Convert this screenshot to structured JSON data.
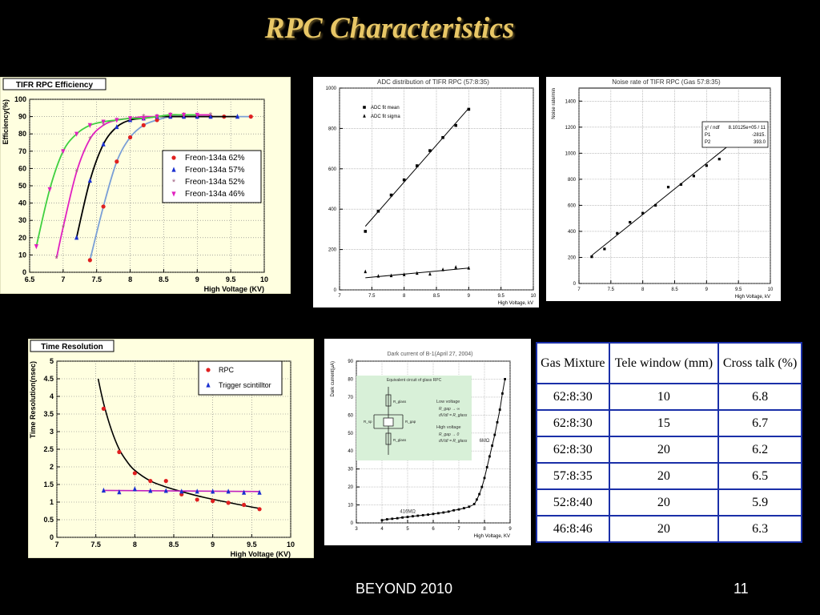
{
  "slide": {
    "title": "RPC Characteristics",
    "footer_left": "BEYOND 2010",
    "page_number": "11"
  },
  "chart_data": [
    {
      "id": "efficiency",
      "type": "scatter",
      "title": "TIFR RPC Efficiency",
      "xlabel": "High Voltage (KV)",
      "ylabel": "Efficiency(%)",
      "xlim": [
        6.5,
        10
      ],
      "ylim": [
        0,
        100
      ],
      "x_ticks": [
        "6.5",
        "7",
        "7.5",
        "8",
        "8.5",
        "9",
        "9.5",
        "10"
      ],
      "y_ticks": [
        "0",
        "10",
        "20",
        "30",
        "40",
        "50",
        "60",
        "70",
        "80",
        "90",
        "100"
      ],
      "legend_position": "center-right",
      "grid": true,
      "series": [
        {
          "name": "Freon-134a  62%",
          "color": "#e02020",
          "marker": "circle",
          "curve_color": "#7a9fd6",
          "points": [
            [
              7.4,
              7
            ],
            [
              7.6,
              38
            ],
            [
              7.8,
              64
            ],
            [
              8.0,
              78
            ],
            [
              8.2,
              85
            ],
            [
              8.4,
              88
            ],
            [
              8.6,
              90
            ],
            [
              8.8,
              90
            ],
            [
              9.0,
              90
            ],
            [
              9.2,
              90
            ],
            [
              9.4,
              90
            ],
            [
              9.8,
              90
            ]
          ]
        },
        {
          "name": "Freon-134a  57%",
          "color": "#1a2fd0",
          "marker": "triangle",
          "curve_color": "#000000",
          "points": [
            [
              7.2,
              20
            ],
            [
              7.4,
              53
            ],
            [
              7.6,
              74
            ],
            [
              7.8,
              84
            ],
            [
              8.0,
              88
            ],
            [
              8.2,
              89
            ],
            [
              8.4,
              90
            ],
            [
              8.6,
              90
            ],
            [
              8.8,
              90
            ],
            [
              9.0,
              90
            ],
            [
              9.2,
              90
            ],
            [
              9.6,
              90
            ]
          ]
        },
        {
          "name": "Freon-134a  52%",
          "color": "#a06080",
          "marker": "star",
          "curve_color": "#e020c0",
          "points": [
            [
              6.9,
              8
            ],
            [
              7.0,
              26
            ],
            [
              7.2,
              58
            ],
            [
              7.4,
              77
            ],
            [
              7.6,
              85
            ],
            [
              7.8,
              88
            ],
            [
              8.0,
              89
            ],
            [
              8.2,
              90
            ],
            [
              8.4,
              90
            ],
            [
              8.6,
              91
            ],
            [
              8.8,
              91
            ],
            [
              9.2,
              91
            ]
          ]
        },
        {
          "name": "Freon-134a  46%",
          "color": "#e020c0",
          "marker": "triangle-down",
          "curve_color": "#40d040",
          "points": [
            [
              6.6,
              15
            ],
            [
              6.8,
              48
            ],
            [
              7.0,
              70
            ],
            [
              7.2,
              80
            ],
            [
              7.4,
              85
            ],
            [
              7.6,
              87
            ],
            [
              7.8,
              88
            ],
            [
              8.0,
              89
            ],
            [
              8.2,
              89
            ],
            [
              8.4,
              90
            ],
            [
              8.6,
              91
            ],
            [
              8.8,
              91
            ],
            [
              9.0,
              91
            ]
          ]
        }
      ]
    },
    {
      "id": "adc",
      "type": "scatter",
      "title": "ADC distribution of TIFR RPC (57:8:35)",
      "xlabel": "High Voltage, kV",
      "ylabel": "",
      "xlim": [
        7,
        10
      ],
      "ylim": [
        0,
        1000
      ],
      "x_ticks": [
        "7",
        "7.5",
        "8",
        "8.5",
        "9",
        "9.5",
        "10"
      ],
      "y_ticks": [
        "0",
        "200",
        "400",
        "600",
        "800",
        "1000"
      ],
      "grid": true,
      "legend_position": "top-left",
      "series": [
        {
          "name": "ADC fit mean",
          "marker": "square",
          "points": [
            [
              7.4,
              290
            ],
            [
              7.6,
              390
            ],
            [
              7.8,
              470
            ],
            [
              8.0,
              545
            ],
            [
              8.2,
              615
            ],
            [
              8.4,
              690
            ],
            [
              8.6,
              755
            ],
            [
              8.8,
              815
            ],
            [
              9.0,
              895
            ]
          ],
          "fit": [
            [
              7.4,
              315
            ],
            [
              9.0,
              900
            ]
          ]
        },
        {
          "name": "ADC fit sigma",
          "marker": "triangle",
          "points": [
            [
              7.4,
              90
            ],
            [
              7.6,
              68
            ],
            [
              7.8,
              70
            ],
            [
              8.0,
              75
            ],
            [
              8.2,
              82
            ],
            [
              8.4,
              78
            ],
            [
              8.6,
              100
            ],
            [
              8.8,
              112
            ],
            [
              9.0,
              108
            ]
          ],
          "fit": [
            [
              7.4,
              60
            ],
            [
              9.0,
              108
            ]
          ]
        }
      ]
    },
    {
      "id": "noise",
      "type": "scatter",
      "title": "Noise rate of TIFR RPC (Gas 57:8:35)",
      "xlabel": "High Voltage, kV",
      "ylabel": "Noise rate/min",
      "xlim": [
        7,
        10
      ],
      "ylim": [
        0,
        1500
      ],
      "x_ticks": [
        "7",
        "7.5",
        "8",
        "8.5",
        "9",
        "9.5",
        "10"
      ],
      "y_ticks": [
        "0",
        "200",
        "400",
        "600",
        "800",
        "1000",
        "1200",
        "1400"
      ],
      "grid": true,
      "stats_box": {
        "row1_label": "χ² / ndf",
        "row1_value": "8.10125e+05 /    11",
        "row2_label": "P1",
        "row2_value": "-2815.",
        "row3_label": "P2",
        "row3_value": "393.0"
      },
      "series": [
        {
          "name": "",
          "marker": "square",
          "points": [
            [
              7.2,
              205
            ],
            [
              7.4,
              265
            ],
            [
              7.6,
              385
            ],
            [
              7.8,
              470
            ],
            [
              8.0,
              540
            ],
            [
              8.2,
              600
            ],
            [
              8.4,
              740
            ],
            [
              8.6,
              760
            ],
            [
              8.8,
              825
            ],
            [
              9.0,
              905
            ],
            [
              9.2,
              955
            ],
            [
              9.4,
              1060
            ]
          ],
          "fit": [
            [
              7.2,
              215
            ],
            [
              9.4,
              1080
            ]
          ]
        }
      ]
    },
    {
      "id": "time_resolution",
      "type": "scatter",
      "title": "Time Resolution",
      "xlabel": "High Voltage (KV)",
      "ylabel": "Time Resolution(nsec)",
      "xlim": [
        7,
        10
      ],
      "ylim": [
        0,
        5
      ],
      "x_ticks": [
        "7",
        "7.5",
        "8",
        "8.5",
        "9",
        "9.5",
        "10"
      ],
      "y_ticks": [
        "0",
        "0.5",
        "1",
        "1.5",
        "2",
        "2.5",
        "3",
        "3.5",
        "4",
        "4.5",
        "5"
      ],
      "grid": true,
      "legend_position": "top-right",
      "series": [
        {
          "name": "RPC",
          "color": "#e02020",
          "marker": "circle",
          "points": [
            [
              7.6,
              3.65
            ],
            [
              7.8,
              2.42
            ],
            [
              8.0,
              1.82
            ],
            [
              8.2,
              1.6
            ],
            [
              8.4,
              1.6
            ],
            [
              8.6,
              1.22
            ],
            [
              8.8,
              1.07
            ],
            [
              9.0,
              1.03
            ],
            [
              9.2,
              0.98
            ],
            [
              9.4,
              0.92
            ],
            [
              9.6,
              0.8
            ]
          ],
          "fit": [
            [
              7.53,
              4.5
            ],
            [
              7.6,
              3.8
            ],
            [
              7.7,
              3.05
            ],
            [
              7.8,
              2.5
            ],
            [
              7.9,
              2.15
            ],
            [
              8.0,
              1.9
            ],
            [
              8.2,
              1.6
            ],
            [
              8.4,
              1.43
            ],
            [
              8.6,
              1.3
            ],
            [
              8.8,
              1.18
            ],
            [
              9.0,
              1.08
            ],
            [
              9.2,
              0.99
            ],
            [
              9.4,
              0.9
            ],
            [
              9.6,
              0.82
            ]
          ]
        },
        {
          "name": "Trigger scintilltor",
          "color": "#1a2fd0",
          "marker": "triangle",
          "points": [
            [
              7.6,
              1.33
            ],
            [
              7.8,
              1.28
            ],
            [
              8.0,
              1.37
            ],
            [
              8.2,
              1.32
            ],
            [
              8.4,
              1.32
            ],
            [
              8.6,
              1.3
            ],
            [
              8.8,
              1.3
            ],
            [
              9.0,
              1.3
            ],
            [
              9.2,
              1.3
            ],
            [
              9.4,
              1.27
            ],
            [
              9.6,
              1.27
            ]
          ],
          "fit": [
            [
              7.6,
              1.33
            ],
            [
              9.6,
              1.3
            ]
          ]
        }
      ]
    },
    {
      "id": "dark_current",
      "type": "scatter",
      "title": "Dark current of B-1(April 27, 2004)",
      "xlabel": "High Voltage, KV",
      "ylabel": "Dark current(μA)",
      "xlim": [
        3,
        9
      ],
      "ylim": [
        0,
        90
      ],
      "x_ticks": [
        "3",
        "4",
        "5",
        "6",
        "7",
        "8",
        "9"
      ],
      "y_ticks": [
        "0",
        "10",
        "20",
        "30",
        "40",
        "50",
        "60",
        "70",
        "80",
        "90"
      ],
      "grid": true,
      "annotations": {
        "low": "416MΩ",
        "high": "6MΩ"
      },
      "inset": {
        "title": "Equivalent circuit of glass RPC",
        "low_voltage": "Low voltage",
        "low_eq1": "R_gap → ∞",
        "low_eq2": "dV/dI = R_glass",
        "high_voltage": "High voltage",
        "high_eq1": "R_gap → 0",
        "high_eq2": "dV/dI = R_glass",
        "r_glass_top": "R_glass",
        "r_spacer": "R_sp",
        "r_gap": "R_gap",
        "r_glass_bottom": "R_glass"
      },
      "series": [
        {
          "name": "",
          "marker": "square",
          "points": [
            [
              4.0,
              1.5
            ],
            [
              4.2,
              2
            ],
            [
              4.4,
              2.3
            ],
            [
              4.6,
              2.6
            ],
            [
              4.8,
              3
            ],
            [
              5.0,
              3.3
            ],
            [
              5.2,
              3.7
            ],
            [
              5.4,
              4
            ],
            [
              5.6,
              4.3
            ],
            [
              5.8,
              4.6
            ],
            [
              6.0,
              5
            ],
            [
              6.2,
              5.4
            ],
            [
              6.4,
              5.8
            ],
            [
              6.6,
              6.3
            ],
            [
              6.8,
              7
            ],
            [
              7.0,
              7.5
            ],
            [
              7.2,
              8.2
            ],
            [
              7.4,
              9
            ],
            [
              7.6,
              10.5
            ],
            [
              7.7,
              13
            ],
            [
              7.8,
              16
            ],
            [
              7.9,
              20
            ],
            [
              8.0,
              25
            ],
            [
              8.1,
              31
            ],
            [
              8.2,
              37
            ],
            [
              8.3,
              43
            ],
            [
              8.4,
              49
            ],
            [
              8.5,
              56
            ],
            [
              8.6,
              63
            ],
            [
              8.7,
              72
            ],
            [
              8.8,
              80
            ]
          ]
        }
      ]
    }
  ],
  "table": {
    "headers": [
      "Gas Mixture",
      "Tele window (mm)",
      "Cross talk (%)"
    ],
    "rows": [
      [
        "62:8:30",
        "10",
        "6.8"
      ],
      [
        "62:8:30",
        "15",
        "6.7"
      ],
      [
        "62:8:30",
        "20",
        "6.2"
      ],
      [
        "57:8:35",
        "20",
        "6.5"
      ],
      [
        "52:8:40",
        "20",
        "5.9"
      ],
      [
        "46:8:46",
        "20",
        "6.3"
      ]
    ]
  }
}
